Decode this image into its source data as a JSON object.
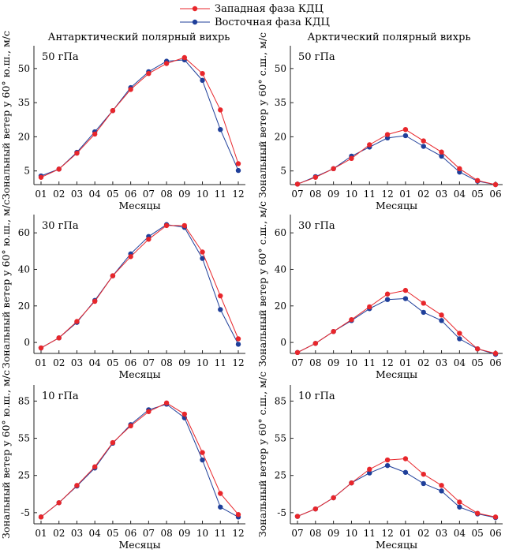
{
  "legend": {
    "entries": [
      {
        "label": "Западная фаза КДЦ",
        "color": "#e8262b"
      },
      {
        "label": "Восточная фаза КДЦ",
        "color": "#1f3f9a"
      }
    ]
  },
  "columns": [
    {
      "title": "Антарктический полярный вихрь"
    },
    {
      "title": "Арктический полярный вихрь"
    }
  ],
  "chart_data": [
    {
      "type": "line",
      "column": 0,
      "row": 0,
      "panel_label": "50 гПа",
      "ylabel": "Зональный ветер у 60° ю.ш., м/с",
      "xlabel": "Месяцы",
      "categories": [
        "01",
        "02",
        "03",
        "04",
        "05",
        "06",
        "07",
        "08",
        "09",
        "10",
        "11",
        "12"
      ],
      "ylim": [
        -1,
        60
      ],
      "yticks": [
        5,
        20,
        35,
        50
      ],
      "series": [
        {
          "name": "Западная фаза КДЦ",
          "color": "#e8262b",
          "values": [
            2.2,
            5.8,
            12.8,
            21.2,
            31.5,
            40.8,
            47.8,
            52.2,
            54.8,
            47.8,
            31.8,
            8.2
          ]
        },
        {
          "name": "Восточная фаза КДЦ",
          "color": "#1f3f9a",
          "values": [
            2.8,
            5.8,
            13.2,
            22.2,
            31.5,
            41.6,
            48.6,
            53.2,
            53.8,
            44.8,
            23.2,
            5.2
          ]
        }
      ]
    },
    {
      "type": "line",
      "column": 1,
      "row": 0,
      "panel_label": "50 гПа",
      "ylabel": "Зональный ветер у 60° с.ш., м/с",
      "xlabel": "Месяцы",
      "categories": [
        "07",
        "08",
        "09",
        "10",
        "11",
        "12",
        "01",
        "02",
        "03",
        "04",
        "05",
        "06"
      ],
      "ylim": [
        -1,
        60
      ],
      "yticks": [
        5,
        20,
        35,
        50
      ],
      "series": [
        {
          "name": "Западная фаза КДЦ",
          "color": "#e8262b",
          "values": [
            -0.8,
            2.2,
            6.0,
            10.5,
            16.5,
            21.0,
            23.2,
            18.2,
            13.3,
            6.0,
            0.8,
            -1.0
          ]
        },
        {
          "name": "Восточная фаза КДЦ",
          "color": "#1f3f9a",
          "values": [
            -0.8,
            2.5,
            6.0,
            11.5,
            15.5,
            19.5,
            20.5,
            15.8,
            11.5,
            4.5,
            0.5,
            -1.0
          ]
        }
      ]
    },
    {
      "type": "line",
      "column": 0,
      "row": 1,
      "panel_label": "30 гПа",
      "ylabel": "Зональный ветер у 60° ю.ш., м/с",
      "xlabel": "Месяцы",
      "categories": [
        "01",
        "02",
        "03",
        "04",
        "05",
        "06",
        "07",
        "08",
        "09",
        "10",
        "11",
        "12"
      ],
      "ylim": [
        -6,
        70
      ],
      "yticks": [
        0,
        20,
        40,
        60
      ],
      "series": [
        {
          "name": "Западная фаза КДЦ",
          "color": "#e8262b",
          "values": [
            -3.0,
            2.5,
            11.5,
            22.5,
            36.5,
            47.0,
            56.5,
            64.0,
            64.0,
            49.5,
            25.5,
            2.0
          ]
        },
        {
          "name": "Восточная фаза КДЦ",
          "color": "#1f3f9a",
          "values": [
            -3.0,
            2.5,
            11.0,
            23.0,
            36.5,
            48.5,
            58.0,
            64.5,
            63.0,
            46.0,
            18.0,
            -1.0
          ]
        }
      ]
    },
    {
      "type": "line",
      "column": 1,
      "row": 1,
      "panel_label": "30 гПа",
      "ylabel": "Зональный ветер у 60° с.ш., м/с",
      "xlabel": "Месяцы",
      "categories": [
        "07",
        "08",
        "09",
        "10",
        "11",
        "12",
        "01",
        "02",
        "03",
        "04",
        "05",
        "06"
      ],
      "ylim": [
        -6,
        70
      ],
      "yticks": [
        0,
        20,
        40,
        60
      ],
      "series": [
        {
          "name": "Западная фаза КДЦ",
          "color": "#e8262b",
          "values": [
            -5.5,
            -0.5,
            6.0,
            12.5,
            19.5,
            26.5,
            28.5,
            21.5,
            15.0,
            5.0,
            -3.5,
            -6.0
          ]
        },
        {
          "name": "Восточная фаза КДЦ",
          "color": "#1f3f9a",
          "values": [
            -5.5,
            -0.5,
            6.0,
            12.0,
            18.5,
            23.5,
            24.0,
            16.5,
            12.0,
            2.0,
            -3.5,
            -6.5
          ]
        }
      ]
    },
    {
      "type": "line",
      "column": 0,
      "row": 2,
      "panel_label": "10 гПа",
      "ylabel": "Зональный ветер у 60° ю.ш., м/с",
      "xlabel": "Месяцы",
      "categories": [
        "01",
        "02",
        "03",
        "04",
        "05",
        "06",
        "07",
        "08",
        "09",
        "10",
        "11",
        "12"
      ],
      "ylim": [
        -14,
        98
      ],
      "yticks": [
        -5,
        25,
        55,
        85
      ],
      "series": [
        {
          "name": "Западная фаза КДЦ",
          "color": "#e8262b",
          "values": [
            -8.5,
            3.0,
            17.0,
            32.0,
            51.5,
            65.0,
            76.5,
            83.5,
            74.5,
            43.5,
            10.5,
            -6.5
          ]
        },
        {
          "name": "Восточная фаза КДЦ",
          "color": "#1f3f9a",
          "values": [
            -8.5,
            3.0,
            16.5,
            31.0,
            51.0,
            66.0,
            78.0,
            82.5,
            71.5,
            37.5,
            -0.5,
            -8.5
          ]
        }
      ]
    },
    {
      "type": "line",
      "column": 1,
      "row": 2,
      "panel_label": "10 гПа",
      "ylabel": "Зональный ветер у 60° с.ш., м/с",
      "xlabel": "Месяцы",
      "categories": [
        "07",
        "08",
        "09",
        "10",
        "11",
        "12",
        "01",
        "02",
        "03",
        "04",
        "05",
        "06"
      ],
      "ylim": [
        -14,
        98
      ],
      "yticks": [
        -5,
        25,
        55,
        85
      ],
      "series": [
        {
          "name": "Западная фаза КДЦ",
          "color": "#e8262b",
          "values": [
            -8.0,
            -2.0,
            7.0,
            19.0,
            30.0,
            37.5,
            38.5,
            26.0,
            17.0,
            3.5,
            -5.5,
            -8.5
          ]
        },
        {
          "name": "Восточная фаза КДЦ",
          "color": "#1f3f9a",
          "values": [
            -8.0,
            -2.0,
            7.0,
            19.0,
            27.0,
            33.0,
            27.5,
            18.5,
            12.5,
            -0.5,
            -6.0,
            -9.0
          ]
        }
      ]
    }
  ]
}
